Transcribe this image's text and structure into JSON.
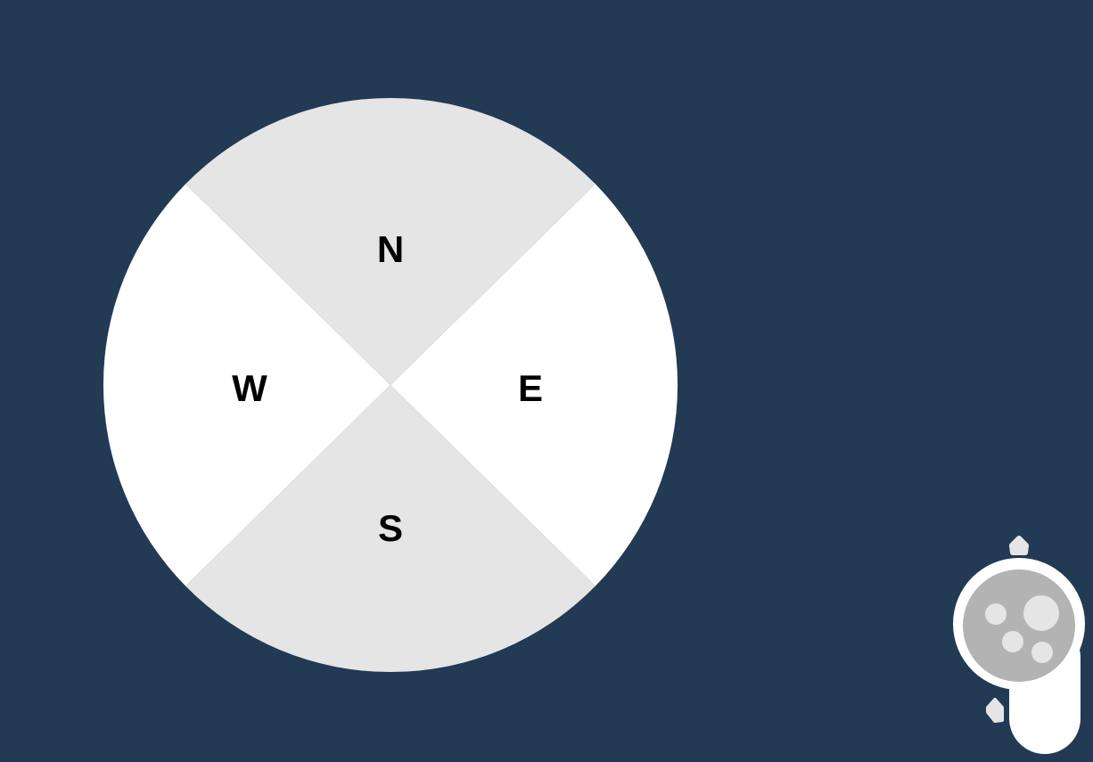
{
  "compass": {
    "labels": {
      "north": "N",
      "east": "E",
      "south": "S",
      "west": "W"
    },
    "colors": {
      "north_south": "#e5e5e5",
      "east_west": "#ffffff",
      "background": "#223a54",
      "text": "#000000"
    }
  },
  "controller": {
    "icon": "vr-controller-icon",
    "colors": {
      "body": "#ffffff",
      "face": "#b3b3b3",
      "buttons": "#e5e5e5"
    }
  }
}
